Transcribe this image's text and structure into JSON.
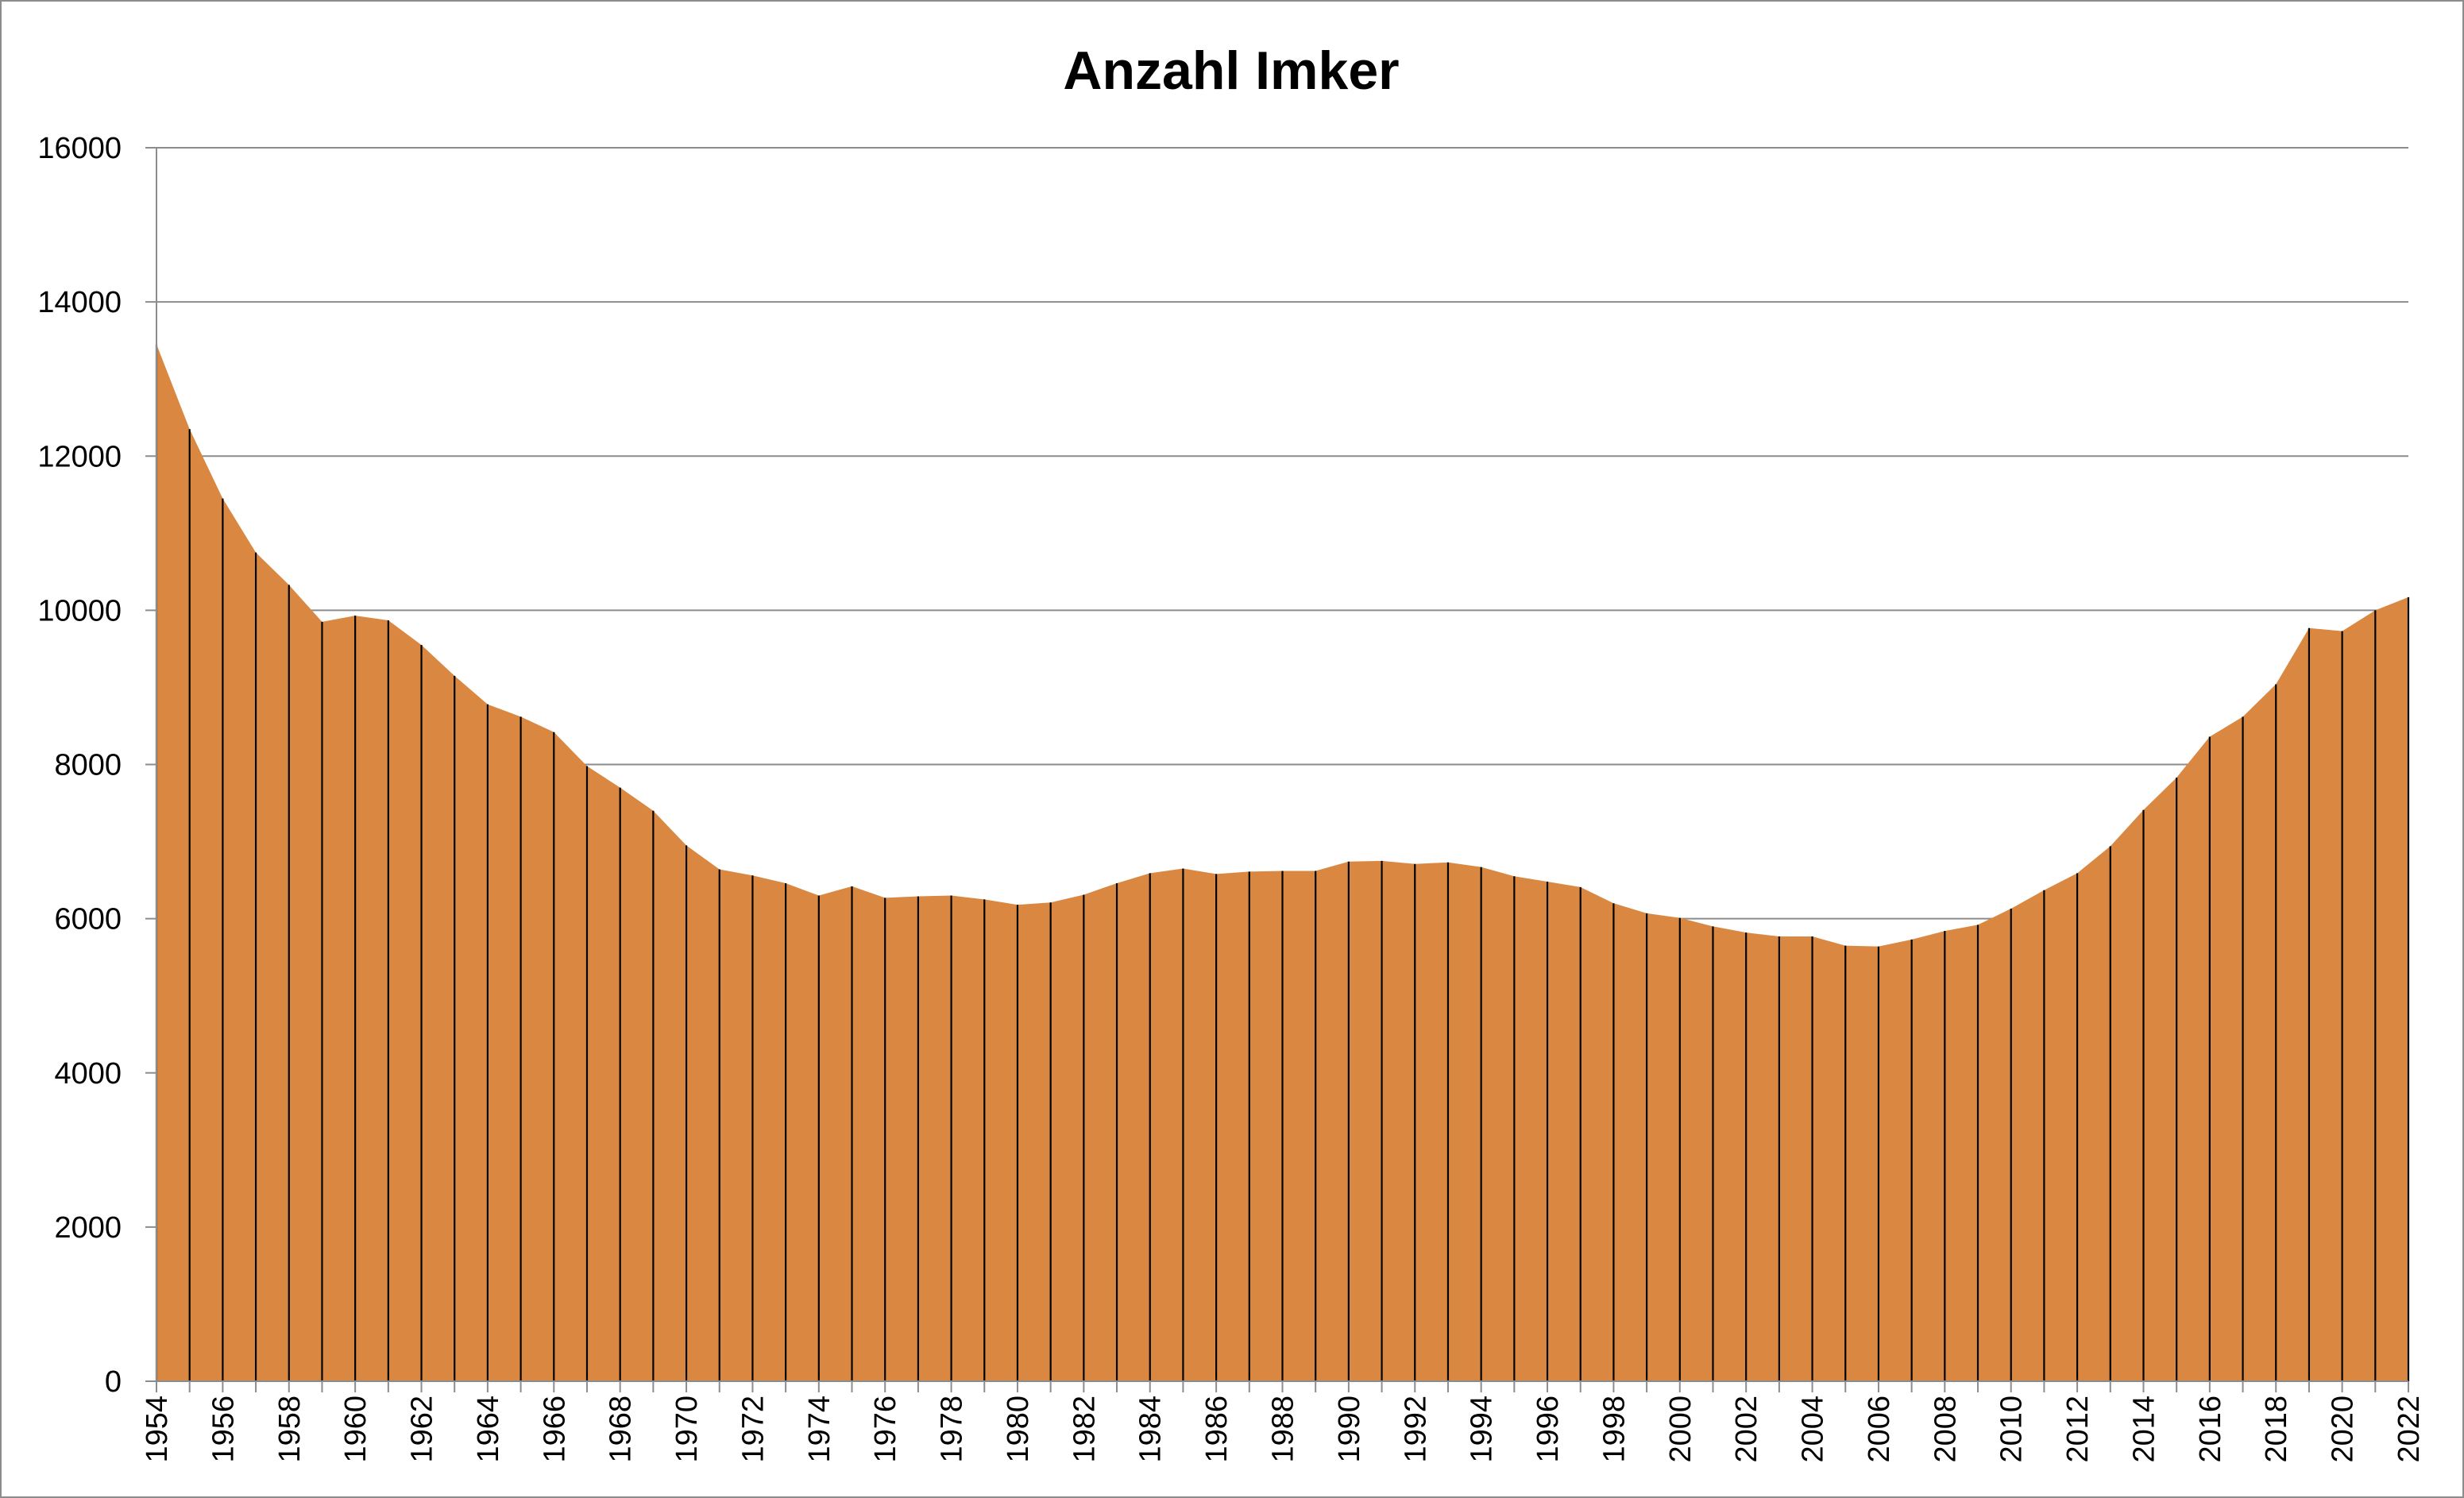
{
  "chart_data": {
    "type": "area",
    "title": "Anzahl Imker",
    "xlabel": "",
    "ylabel": "",
    "ylim": [
      0,
      16000
    ],
    "yticks": [
      0,
      2000,
      4000,
      6000,
      8000,
      10000,
      12000,
      14000,
      16000
    ],
    "x_tick_labels_every": 2,
    "x": [
      1954,
      1955,
      1956,
      1957,
      1958,
      1959,
      1960,
      1961,
      1962,
      1963,
      1964,
      1965,
      1966,
      1967,
      1968,
      1969,
      1970,
      1971,
      1972,
      1973,
      1974,
      1975,
      1976,
      1977,
      1978,
      1979,
      1980,
      1981,
      1982,
      1983,
      1984,
      1985,
      1986,
      1987,
      1988,
      1989,
      1990,
      1991,
      1992,
      1993,
      1994,
      1995,
      1996,
      1997,
      1998,
      1999,
      2000,
      2001,
      2002,
      2003,
      2004,
      2005,
      2006,
      2007,
      2008,
      2009,
      2010,
      2011,
      2012,
      2013,
      2014,
      2015,
      2016,
      2017,
      2018,
      2019,
      2020,
      2021,
      2022
    ],
    "values": [
      13450,
      12350,
      11450,
      10750,
      10330,
      9850,
      9930,
      9870,
      9550,
      9150,
      8780,
      8620,
      8420,
      7980,
      7700,
      7400,
      6950,
      6640,
      6560,
      6460,
      6300,
      6420,
      6270,
      6290,
      6300,
      6250,
      6180,
      6210,
      6310,
      6460,
      6590,
      6650,
      6580,
      6610,
      6620,
      6620,
      6740,
      6750,
      6710,
      6730,
      6670,
      6550,
      6480,
      6410,
      6200,
      6070,
      6010,
      5900,
      5820,
      5770,
      5770,
      5650,
      5640,
      5730,
      5840,
      5920,
      6130,
      6370,
      6590,
      6940,
      7410,
      7830,
      8360,
      8620,
      9040,
      9770,
      9730,
      10000,
      10170
    ],
    "grid": true,
    "legend": "none",
    "colors": {
      "area_fill": "#DA8841",
      "drop_lines": "#000000",
      "grid": "#8C8C8C",
      "axis": "#8C8C8C",
      "border": "#8C8C8C"
    }
  }
}
